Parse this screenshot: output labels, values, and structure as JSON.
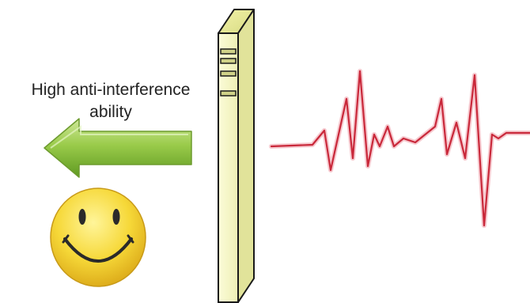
{
  "caption": {
    "line1": "High anti-interference",
    "line2": "ability"
  },
  "icons": {
    "arrow": "left-arrow-icon",
    "smiley": "smiley-face-icon",
    "shield": "barrier-panel-icon",
    "signal": "noise-waveform-icon"
  },
  "colors": {
    "arrow_green": "#8cc63f",
    "barrier_fill": "#f6f7c8",
    "signal_red": "#d23a4a",
    "smiley_yellow": "#f3d23a"
  }
}
